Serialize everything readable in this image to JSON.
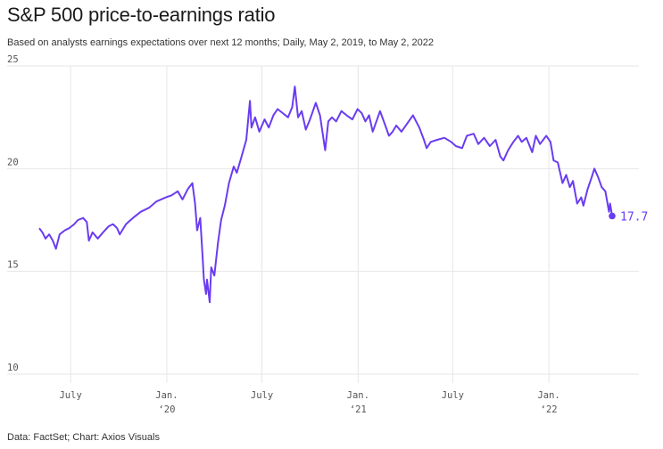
{
  "title": "S&P 500 price-to-earnings ratio",
  "subtitle": "Based on analysts earnings expectations over next 12 months; Daily, May 2, 2019, to May 2, 2022",
  "source": "Data: FactSet; Chart: Axios Visuals",
  "colors": {
    "line": "#6a3cf0",
    "grid": "#e6e6e6",
    "text": "#555555"
  },
  "chart_data": {
    "type": "line",
    "xlim": [
      "2019-05-02",
      "2022-05-02"
    ],
    "ylim": [
      10,
      25
    ],
    "yticks": [
      10,
      15,
      20,
      25
    ],
    "xticks": [
      {
        "date": "2019-07-01",
        "label": "July",
        "sub": ""
      },
      {
        "date": "2020-01-01",
        "label": "Jan.",
        "sub": "‘20"
      },
      {
        "date": "2020-07-01",
        "label": "July",
        "sub": ""
      },
      {
        "date": "2021-01-01",
        "label": "Jan.",
        "sub": "‘21"
      },
      {
        "date": "2021-07-01",
        "label": "July",
        "sub": ""
      },
      {
        "date": "2022-01-01",
        "label": "Jan.",
        "sub": "‘22"
      }
    ],
    "grid": true,
    "end_label": "17.7",
    "series": [
      {
        "points": [
          [
            "2019-05-02",
            17.1
          ],
          [
            "2019-05-08",
            16.9
          ],
          [
            "2019-05-14",
            16.6
          ],
          [
            "2019-05-21",
            16.8
          ],
          [
            "2019-05-28",
            16.5
          ],
          [
            "2019-06-03",
            16.1
          ],
          [
            "2019-06-10",
            16.8
          ],
          [
            "2019-06-20",
            17.0
          ],
          [
            "2019-06-28",
            17.1
          ],
          [
            "2019-07-08",
            17.3
          ],
          [
            "2019-07-15",
            17.5
          ],
          [
            "2019-07-25",
            17.6
          ],
          [
            "2019-08-01",
            17.4
          ],
          [
            "2019-08-05",
            16.5
          ],
          [
            "2019-08-12",
            16.9
          ],
          [
            "2019-08-22",
            16.6
          ],
          [
            "2019-09-01",
            16.9
          ],
          [
            "2019-09-12",
            17.2
          ],
          [
            "2019-09-20",
            17.3
          ],
          [
            "2019-09-28",
            17.1
          ],
          [
            "2019-10-03",
            16.8
          ],
          [
            "2019-10-15",
            17.3
          ],
          [
            "2019-10-28",
            17.6
          ],
          [
            "2019-11-12",
            17.9
          ],
          [
            "2019-11-28",
            18.1
          ],
          [
            "2019-12-12",
            18.4
          ],
          [
            "2019-12-30",
            18.6
          ],
          [
            "2020-01-10",
            18.7
          ],
          [
            "2020-01-22",
            18.9
          ],
          [
            "2020-01-31",
            18.5
          ],
          [
            "2020-02-10",
            19.0
          ],
          [
            "2020-02-19",
            19.3
          ],
          [
            "2020-02-24",
            18.3
          ],
          [
            "2020-02-28",
            17.0
          ],
          [
            "2020-03-05",
            17.6
          ],
          [
            "2020-03-09",
            15.9
          ],
          [
            "2020-03-12",
            14.6
          ],
          [
            "2020-03-16",
            13.9
          ],
          [
            "2020-03-18",
            14.6
          ],
          [
            "2020-03-23",
            13.5
          ],
          [
            "2020-03-26",
            15.2
          ],
          [
            "2020-04-01",
            14.8
          ],
          [
            "2020-04-08",
            16.4
          ],
          [
            "2020-04-14",
            17.5
          ],
          [
            "2020-04-21",
            18.2
          ],
          [
            "2020-04-29",
            19.3
          ],
          [
            "2020-05-08",
            20.1
          ],
          [
            "2020-05-14",
            19.8
          ],
          [
            "2020-05-22",
            20.5
          ],
          [
            "2020-06-01",
            21.4
          ],
          [
            "2020-06-08",
            23.3
          ],
          [
            "2020-06-11",
            22.0
          ],
          [
            "2020-06-18",
            22.5
          ],
          [
            "2020-06-26",
            21.8
          ],
          [
            "2020-07-06",
            22.4
          ],
          [
            "2020-07-14",
            22.0
          ],
          [
            "2020-07-23",
            22.6
          ],
          [
            "2020-07-31",
            22.9
          ],
          [
            "2020-08-10",
            22.7
          ],
          [
            "2020-08-20",
            22.5
          ],
          [
            "2020-08-28",
            23.0
          ],
          [
            "2020-09-02",
            24.0
          ],
          [
            "2020-09-08",
            22.5
          ],
          [
            "2020-09-15",
            22.8
          ],
          [
            "2020-09-23",
            21.9
          ],
          [
            "2020-10-01",
            22.4
          ],
          [
            "2020-10-12",
            23.2
          ],
          [
            "2020-10-20",
            22.6
          ],
          [
            "2020-10-30",
            20.9
          ],
          [
            "2020-11-05",
            22.3
          ],
          [
            "2020-11-12",
            22.5
          ],
          [
            "2020-11-20",
            22.3
          ],
          [
            "2020-11-30",
            22.8
          ],
          [
            "2020-12-10",
            22.6
          ],
          [
            "2020-12-21",
            22.4
          ],
          [
            "2020-12-31",
            22.9
          ],
          [
            "2021-01-08",
            22.7
          ],
          [
            "2021-01-15",
            22.3
          ],
          [
            "2021-01-22",
            22.6
          ],
          [
            "2021-01-29",
            21.8
          ],
          [
            "2021-02-05",
            22.3
          ],
          [
            "2021-02-12",
            22.8
          ],
          [
            "2021-02-22",
            22.1
          ],
          [
            "2021-03-01",
            21.6
          ],
          [
            "2021-03-08",
            21.8
          ],
          [
            "2021-03-15",
            22.1
          ],
          [
            "2021-03-25",
            21.8
          ],
          [
            "2021-04-05",
            22.2
          ],
          [
            "2021-04-16",
            22.6
          ],
          [
            "2021-04-28",
            22.0
          ],
          [
            "2021-05-07",
            21.4
          ],
          [
            "2021-05-12",
            21.0
          ],
          [
            "2021-05-20",
            21.3
          ],
          [
            "2021-06-01",
            21.4
          ],
          [
            "2021-06-15",
            21.5
          ],
          [
            "2021-06-28",
            21.3
          ],
          [
            "2021-07-07",
            21.1
          ],
          [
            "2021-07-19",
            21.0
          ],
          [
            "2021-07-28",
            21.6
          ],
          [
            "2021-08-10",
            21.7
          ],
          [
            "2021-08-19",
            21.2
          ],
          [
            "2021-08-30",
            21.5
          ],
          [
            "2021-09-10",
            21.1
          ],
          [
            "2021-09-21",
            21.4
          ],
          [
            "2021-09-30",
            20.6
          ],
          [
            "2021-10-06",
            20.4
          ],
          [
            "2021-10-15",
            20.9
          ],
          [
            "2021-10-25",
            21.3
          ],
          [
            "2021-11-03",
            21.6
          ],
          [
            "2021-11-10",
            21.3
          ],
          [
            "2021-11-19",
            21.5
          ],
          [
            "2021-11-30",
            20.8
          ],
          [
            "2021-12-07",
            21.6
          ],
          [
            "2021-12-15",
            21.2
          ],
          [
            "2021-12-27",
            21.6
          ],
          [
            "2022-01-04",
            21.3
          ],
          [
            "2022-01-10",
            20.4
          ],
          [
            "2022-01-18",
            20.3
          ],
          [
            "2022-01-27",
            19.3
          ],
          [
            "2022-02-03",
            19.7
          ],
          [
            "2022-02-10",
            19.1
          ],
          [
            "2022-02-16",
            19.4
          ],
          [
            "2022-02-24",
            18.3
          ],
          [
            "2022-03-04",
            18.6
          ],
          [
            "2022-03-08",
            18.2
          ],
          [
            "2022-03-16",
            19.0
          ],
          [
            "2022-03-24",
            19.6
          ],
          [
            "2022-03-29",
            20.0
          ],
          [
            "2022-04-05",
            19.6
          ],
          [
            "2022-04-12",
            19.1
          ],
          [
            "2022-04-19",
            18.9
          ],
          [
            "2022-04-26",
            17.9
          ],
          [
            "2022-04-28",
            18.3
          ],
          [
            "2022-05-02",
            17.7
          ]
        ]
      }
    ]
  }
}
